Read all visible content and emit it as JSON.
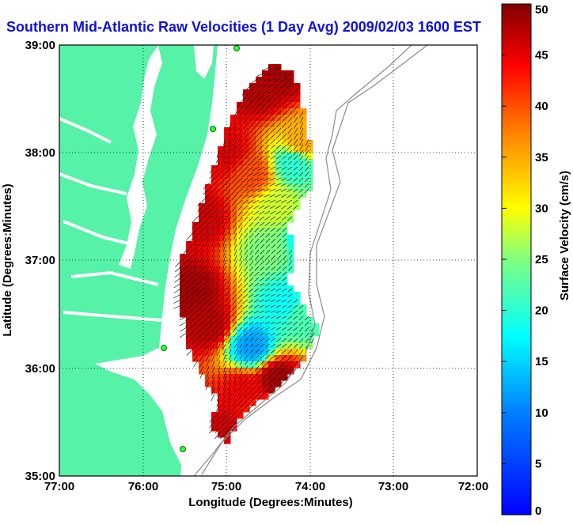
{
  "chart_data": {
    "type": "heatmap",
    "title": "Southern Mid-Atlantic Raw Velocities (1 Day Avg) 2009/02/03 1600 EST",
    "xlabel": "Longitude (Degrees:Minutes)",
    "ylabel": "Latitude (Degrees:Minutes)",
    "colorbar_label": "Surface Velocity (cm/s)",
    "x_ticks": [
      "77:00",
      "76:00",
      "75:00",
      "74:00",
      "73:00",
      "72:00"
    ],
    "y_ticks": [
      "39:00",
      "38:00",
      "37:00",
      "36:00",
      "35:00"
    ],
    "colorbar_ticks": [
      "50",
      "45",
      "40",
      "35",
      "30",
      "25",
      "20",
      "15",
      "10",
      "5",
      "0"
    ],
    "xlim": [
      -77,
      -72
    ],
    "ylim": [
      35,
      39
    ],
    "clim": [
      0,
      50
    ],
    "grid": true,
    "colormap": "jet",
    "land_color": "#55f2a8",
    "title_color": "#1010e0",
    "velocity_field": [
      {
        "lon": -75.4,
        "lat": 36.7,
        "speed": 48
      },
      {
        "lon": -75.2,
        "lat": 36.4,
        "speed": 47
      },
      {
        "lon": -75.3,
        "lat": 37.4,
        "speed": 46
      },
      {
        "lon": -75.0,
        "lat": 38.0,
        "speed": 45
      },
      {
        "lon": -74.6,
        "lat": 38.6,
        "speed": 47
      },
      {
        "lon": -74.3,
        "lat": 38.8,
        "speed": 48
      },
      {
        "lon": -74.7,
        "lat": 37.8,
        "speed": 40
      },
      {
        "lon": -74.4,
        "lat": 37.5,
        "speed": 28
      },
      {
        "lon": -74.2,
        "lat": 37.9,
        "speed": 20
      },
      {
        "lon": -74.1,
        "lat": 38.1,
        "speed": 35
      },
      {
        "lon": -74.5,
        "lat": 37.1,
        "speed": 25
      },
      {
        "lon": -74.3,
        "lat": 36.6,
        "speed": 18
      },
      {
        "lon": -74.7,
        "lat": 36.2,
        "speed": 12
      },
      {
        "lon": -74.1,
        "lat": 36.5,
        "speed": 22
      },
      {
        "lon": -74.8,
        "lat": 35.8,
        "speed": 44
      },
      {
        "lon": -74.4,
        "lat": 35.9,
        "speed": 48
      },
      {
        "lon": -75.0,
        "lat": 35.4,
        "speed": 46
      },
      {
        "lon": -74.6,
        "lat": 35.6,
        "speed": 42
      },
      {
        "lon": -74.0,
        "lat": 37.2,
        "speed": 14
      }
    ]
  }
}
